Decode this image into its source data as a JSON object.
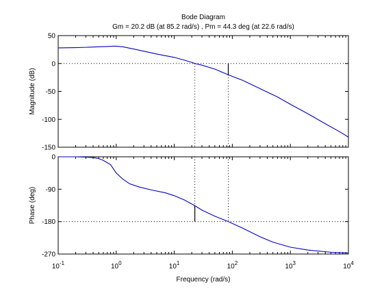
{
  "chart_data": {
    "type": "line",
    "title": "Bode Diagram",
    "subtitle": "Gm = 20.2 dB (at 85.2 rad/s) ,  Pm = 44.3 deg (at 22.6 rad/s)",
    "xlabel": "Frequency  (rad/s)",
    "xscale": "log",
    "xlim": [
      0.1,
      10000
    ],
    "x_ticks": [
      {
        "value": 0.1,
        "base": "10",
        "exp": "-1"
      },
      {
        "value": 1,
        "base": "10",
        "exp": "0"
      },
      {
        "value": 10,
        "base": "10",
        "exp": "1"
      },
      {
        "value": 100,
        "base": "10",
        "exp": "2"
      },
      {
        "value": 1000,
        "base": "10",
        "exp": "3"
      },
      {
        "value": 10000,
        "base": "10",
        "exp": "4"
      }
    ],
    "gain_margin": {
      "frequency": 85.2
    },
    "phase_margin": {
      "frequency": 22.6
    },
    "panels": [
      {
        "id": "magnitude",
        "ylabel": "Magnitude (dB)",
        "ylim": [
          -150,
          50
        ],
        "y_ticks": [
          {
            "value": 50,
            "label": "50"
          },
          {
            "value": 0,
            "label": "0"
          },
          {
            "value": -50,
            "label": "-50"
          },
          {
            "value": -100,
            "label": "-100"
          },
          {
            "value": -150,
            "label": "-150"
          }
        ],
        "reference_line": 0,
        "margin_bar": {
          "x": 85.2,
          "from": 0,
          "to": -20.2
        },
        "phase_margin_marker_from": -150,
        "gain_margin_marker_from": -150,
        "series": {
          "x": [
            0.1,
            0.2,
            0.3,
            0.5,
            0.7,
            0.9,
            1,
            1.3,
            1.6,
            2,
            3,
            5,
            7,
            10,
            15,
            20,
            22.6,
            30,
            50,
            85.2,
            150,
            300,
            600,
            1000,
            2000,
            4000,
            7000,
            10000
          ],
          "y": [
            28,
            28.5,
            29,
            30,
            30.5,
            31,
            31,
            30,
            28,
            26,
            22,
            17,
            14,
            11,
            6,
            2,
            0,
            -3,
            -10,
            -20.2,
            -30,
            -45,
            -60,
            -73,
            -90,
            -108,
            -122,
            -132
          ]
        }
      },
      {
        "id": "phase",
        "ylabel": "Phase (deg)",
        "ylim": [
          -270,
          0
        ],
        "y_ticks": [
          {
            "value": 0,
            "label": "0"
          },
          {
            "value": -90,
            "label": "-90"
          },
          {
            "value": -180,
            "label": "-180"
          },
          {
            "value": -270,
            "label": "-270"
          }
        ],
        "reference_line": -180,
        "margin_bar": {
          "x": 22.6,
          "from": -180,
          "to": -135.7
        },
        "phase_margin_marker_to": 0,
        "gain_margin_marker_to": 0,
        "series": {
          "x": [
            0.1,
            0.2,
            0.3,
            0.4,
            0.5,
            0.6,
            0.8,
            1,
            1.3,
            1.7,
            2.5,
            4,
            7,
            10,
            15,
            22.6,
            30,
            50,
            85.2,
            150,
            300,
            500,
            1000,
            2000,
            5000,
            10000
          ],
          "y": [
            0,
            0,
            -1,
            -2,
            -5,
            -10,
            -22,
            -45,
            -62,
            -75,
            -84,
            -92,
            -100,
            -108,
            -120,
            -135.7,
            -148,
            -165,
            -180,
            -198,
            -222,
            -237,
            -251,
            -259,
            -265,
            -267
          ]
        }
      }
    ]
  }
}
